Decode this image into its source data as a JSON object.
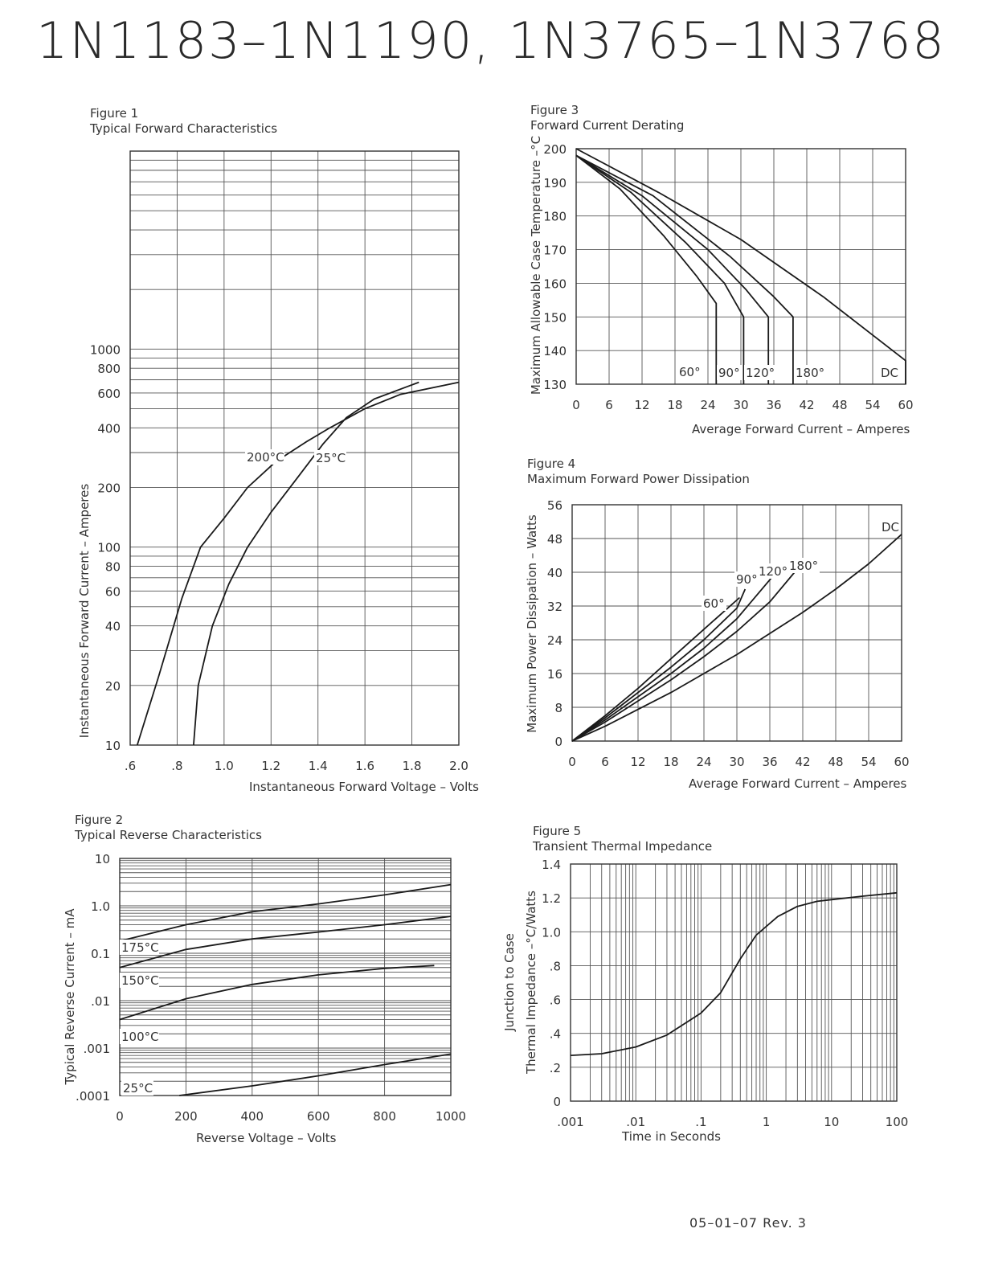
{
  "page": {
    "title": "1N1183–1N1190, 1N3765–1N3768",
    "revision": "05–01–07 Rev. 3"
  },
  "figures": [
    {
      "number": "Figure 1",
      "caption": "Typical Forward Characteristics"
    },
    {
      "number": "Figure 2",
      "caption": "Typical Reverse Characteristics"
    },
    {
      "number": "Figure 3",
      "caption": "Forward Current Derating"
    },
    {
      "number": "Figure 4",
      "caption": "Maximum Forward Power Dissipation"
    },
    {
      "number": "Figure 5",
      "caption": "Transient Thermal Impedance"
    }
  ],
  "chart_data": [
    {
      "id": "fig1",
      "type": "line",
      "xlabel": "Instantaneous Forward Voltage – Volts",
      "ylabel": "Instantaneous Forward Current – Amperes",
      "x_scale": "linear",
      "y_scale": "log",
      "xlim": [
        0.6,
        2.0
      ],
      "ylim": [
        10,
        10000
      ],
      "x_ticks": [
        ".6",
        ".8",
        "1.0",
        "1.2",
        "1.4",
        "1.6",
        "1.8",
        "2.0"
      ],
      "y_ticks": [
        "10",
        "20",
        "40",
        "60",
        "80",
        "100",
        "200",
        "400",
        "600",
        "800",
        "1000"
      ],
      "grid": true,
      "series": [
        {
          "name": "200°C",
          "x": [
            0.63,
            0.72,
            0.82,
            0.9,
            1.0,
            1.1,
            1.22,
            1.35,
            1.45,
            1.6,
            1.75,
            2.0
          ],
          "y": [
            10,
            22,
            55,
            100,
            140,
            200,
            270,
            340,
            400,
            500,
            590,
            680
          ]
        },
        {
          "name": "25°C",
          "x": [
            0.87,
            0.89,
            0.95,
            1.02,
            1.1,
            1.2,
            1.32,
            1.42,
            1.52,
            1.64,
            1.83
          ],
          "y": [
            10,
            20,
            40,
            65,
            100,
            150,
            230,
            330,
            450,
            560,
            680
          ]
        }
      ]
    },
    {
      "id": "fig2",
      "type": "line",
      "xlabel": "Reverse Voltage – Volts",
      "ylabel": "Typical Reverse Current – mA",
      "x_scale": "linear",
      "y_scale": "log",
      "xlim": [
        0,
        1000
      ],
      "ylim": [
        0.0001,
        10
      ],
      "x_ticks": [
        "0",
        "200",
        "400",
        "600",
        "800",
        "1000"
      ],
      "y_ticks": [
        ".0001",
        ".001",
        ".01",
        "0.1",
        "1.0",
        "10"
      ],
      "grid": true,
      "series": [
        {
          "name": "175°C",
          "x": [
            0,
            200,
            400,
            600,
            800,
            1000
          ],
          "y": [
            0.18,
            0.4,
            0.75,
            1.1,
            1.7,
            2.8
          ]
        },
        {
          "name": "150°C",
          "x": [
            0,
            200,
            400,
            600,
            800,
            1000
          ],
          "y": [
            0.05,
            0.12,
            0.2,
            0.28,
            0.4,
            0.6
          ]
        },
        {
          "name": "100°C",
          "x": [
            0,
            200,
            400,
            600,
            800,
            950
          ],
          "y": [
            0.004,
            0.011,
            0.022,
            0.035,
            0.048,
            0.055
          ]
        },
        {
          "name": "25°C",
          "x": [
            180,
            400,
            600,
            800,
            1000
          ],
          "y": [
            0.0001,
            0.00016,
            0.00026,
            0.00045,
            0.00075
          ]
        }
      ]
    },
    {
      "id": "fig3",
      "type": "line",
      "xlabel": "Average Forward Current – Amperes",
      "ylabel": "Maximum Allowable Case Temperature –°C",
      "xlim": [
        0,
        60
      ],
      "ylim": [
        130,
        200
      ],
      "x_ticks": [
        "0",
        "6",
        "12",
        "18",
        "24",
        "30",
        "36",
        "42",
        "48",
        "54",
        "60"
      ],
      "y_ticks": [
        "130",
        "140",
        "150",
        "160",
        "170",
        "180",
        "190",
        "200"
      ],
      "grid": true,
      "series": [
        {
          "name": "60°",
          "x": [
            0,
            8,
            16,
            22,
            25.5,
            25.5
          ],
          "y": [
            198,
            188,
            174,
            162,
            154,
            130
          ]
        },
        {
          "name": "90°",
          "x": [
            0,
            10,
            20,
            27,
            30.5,
            30.5
          ],
          "y": [
            198,
            187,
            172,
            160,
            150,
            130
          ]
        },
        {
          "name": "120°",
          "x": [
            0,
            12,
            24,
            31,
            35,
            35
          ],
          "y": [
            198,
            186,
            170,
            158,
            150,
            130
          ]
        },
        {
          "name": "180°",
          "x": [
            0,
            14,
            28,
            36,
            39.5,
            39.5
          ],
          "y": [
            198,
            186,
            168,
            156,
            150,
            130
          ]
        },
        {
          "name": "DC",
          "x": [
            0,
            15,
            30,
            45,
            60,
            60
          ],
          "y": [
            200,
            187,
            173,
            156,
            137,
            130
          ]
        }
      ]
    },
    {
      "id": "fig4",
      "type": "line",
      "xlabel": "Average Forward Current – Amperes",
      "ylabel": "Maximum Power Dissipation – Watts",
      "xlim": [
        0,
        60
      ],
      "ylim": [
        0,
        56
      ],
      "x_ticks": [
        "0",
        "6",
        "12",
        "18",
        "24",
        "30",
        "36",
        "42",
        "48",
        "54",
        "60"
      ],
      "y_ticks": [
        "0",
        "8",
        "16",
        "24",
        "32",
        "40",
        "48",
        "56"
      ],
      "grid": true,
      "series": [
        {
          "name": "60°",
          "x": [
            0,
            6,
            12,
            18,
            24,
            30.5
          ],
          "y": [
            0,
            6,
            12.5,
            19.5,
            26.5,
            34
          ]
        },
        {
          "name": "90°",
          "x": [
            0,
            6,
            12,
            18,
            24,
            30,
            31.5
          ],
          "y": [
            0,
            5.5,
            11.5,
            17.5,
            24,
            31.5,
            36
          ]
        },
        {
          "name": "120°",
          "x": [
            0,
            6,
            12,
            18,
            24,
            30,
            36.5
          ],
          "y": [
            0,
            5,
            10.5,
            16,
            22,
            29,
            39
          ]
        },
        {
          "name": "180°",
          "x": [
            0,
            6,
            12,
            18,
            24,
            30,
            36,
            40.5
          ],
          "y": [
            0,
            4.5,
            9.5,
            14.5,
            20,
            26,
            33,
            40
          ]
        },
        {
          "name": "DC",
          "x": [
            0,
            6,
            12,
            18,
            24,
            30,
            36,
            42,
            48,
            54,
            60
          ],
          "y": [
            0,
            3.5,
            7.5,
            11.5,
            16,
            20.5,
            25.5,
            30.5,
            36,
            42,
            49
          ]
        }
      ]
    },
    {
      "id": "fig5",
      "type": "line",
      "xlabel": "Time in Seconds",
      "ylabel": "Thermal Impedance –°C/Watts",
      "ylabel2": "Junction to Case",
      "x_scale": "log",
      "xlim": [
        0.001,
        100
      ],
      "ylim": [
        0,
        1.4
      ],
      "x_ticks": [
        ".001",
        ".01",
        ".1",
        "1",
        "10",
        "100"
      ],
      "y_ticks": [
        "0",
        ".2",
        ".4",
        ".6",
        ".8",
        "1.0",
        "1.2",
        "1.4"
      ],
      "grid": true,
      "series": [
        {
          "name": "",
          "x": [
            0.001,
            0.003,
            0.01,
            0.03,
            0.1,
            0.2,
            0.4,
            0.7,
            1.5,
            3,
            6,
            10,
            30,
            100
          ],
          "y": [
            0.27,
            0.28,
            0.32,
            0.39,
            0.52,
            0.64,
            0.84,
            0.98,
            1.09,
            1.15,
            1.18,
            1.19,
            1.21,
            1.23
          ]
        }
      ]
    }
  ]
}
